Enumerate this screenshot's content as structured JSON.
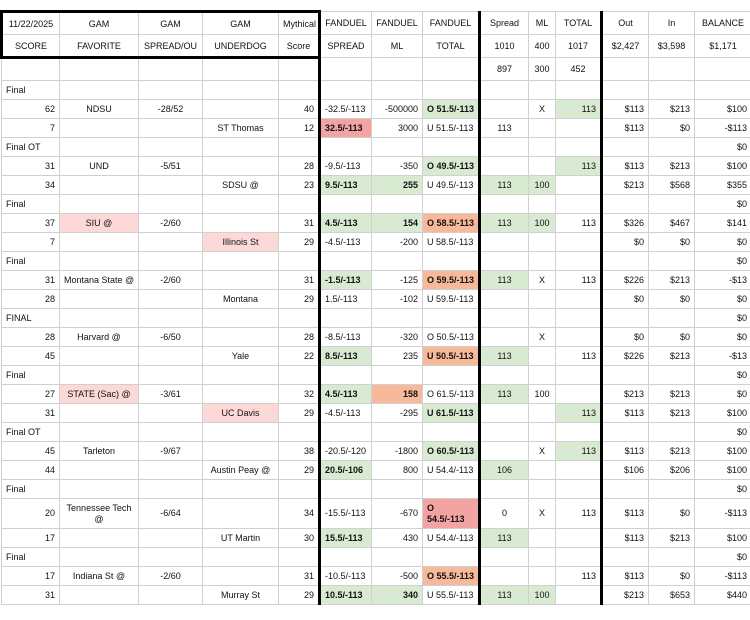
{
  "header_rows": [
    [
      "11/22/2025",
      "GAM",
      "GAM",
      "GAM",
      "Mythical",
      "FANDUEL",
      "FANDUEL",
      "FANDUEL",
      "Spread",
      "ML",
      "TOTAL",
      "Out",
      "In",
      "BALANCE"
    ],
    [
      "SCORE",
      "FAVORITE",
      "SPREAD/OU",
      "UNDERDOG",
      "Score",
      "SPREAD",
      "ML",
      "TOTAL",
      "1010",
      "400",
      "1017",
      "$2,427",
      "$3,598",
      "$1,171"
    ],
    [
      null,
      null,
      null,
      null,
      null,
      null,
      null,
      null,
      "897",
      "300",
      "452",
      null,
      null,
      null
    ]
  ],
  "rows": [
    [
      "Final",
      null,
      null,
      null,
      null,
      null,
      null,
      null,
      null,
      null,
      null,
      null,
      null,
      null
    ],
    [
      "62",
      "NDSU",
      "-28/52",
      null,
      "40",
      "-32.5/-113",
      "-500000",
      "O 51.5/-113",
      null,
      "X",
      "113",
      "$113",
      "$213",
      "$100"
    ],
    [
      "7",
      null,
      null,
      "ST Thomas",
      "12",
      "32.5/-113",
      "3000",
      "U 51.5/-113",
      "113",
      null,
      null,
      "$113",
      "$0",
      "-$113"
    ],
    [
      "Final OT",
      null,
      null,
      null,
      null,
      null,
      null,
      null,
      null,
      null,
      null,
      null,
      null,
      "$0"
    ],
    [
      "31",
      "UND",
      "-5/51",
      null,
      "28",
      "-9.5/-113",
      "-350",
      "O 49.5/-113",
      null,
      null,
      "113",
      "$113",
      "$213",
      "$100"
    ],
    [
      "34",
      null,
      null,
      "SDSU @",
      "23",
      "9.5/-113",
      "255",
      "U 49.5/-113",
      "113",
      "100",
      null,
      "$213",
      "$568",
      "$355"
    ],
    [
      "Final",
      null,
      null,
      null,
      null,
      null,
      null,
      null,
      null,
      null,
      null,
      null,
      null,
      "$0"
    ],
    [
      "37",
      "SIU @",
      "-2/60",
      null,
      "31",
      "4.5/-113",
      "154",
      "O 58.5/-113",
      "113",
      "100",
      "113",
      "$326",
      "$467",
      "$141"
    ],
    [
      "7",
      null,
      null,
      "Illinois St",
      "29",
      "-4.5/-113",
      "-200",
      "U 58.5/-113",
      null,
      null,
      null,
      "$0",
      "$0",
      "$0"
    ],
    [
      "Final",
      null,
      null,
      null,
      null,
      null,
      null,
      null,
      null,
      null,
      null,
      null,
      null,
      "$0"
    ],
    [
      "31",
      "Montana State @",
      "-2/60",
      null,
      "31",
      "-1.5/-113",
      "-125",
      "O 59.5/-113",
      "113",
      "X",
      "113",
      "$226",
      "$213",
      "-$13"
    ],
    [
      "28",
      null,
      null,
      "Montana",
      "29",
      "1.5/-113",
      "-102",
      "U 59.5/-113",
      null,
      null,
      null,
      "$0",
      "$0",
      "$0"
    ],
    [
      "FINAL",
      null,
      null,
      null,
      null,
      null,
      null,
      null,
      null,
      null,
      null,
      null,
      null,
      "$0"
    ],
    [
      "28",
      "Harvard @",
      "-6/50",
      null,
      "28",
      "-8.5/-113",
      "-320",
      "O 50.5/-113",
      null,
      "X",
      null,
      "$0",
      "$0",
      "$0"
    ],
    [
      "45",
      null,
      null,
      "Yale",
      "22",
      "8.5/-113",
      "235",
      "U 50.5/-113",
      "113",
      null,
      "113",
      "$226",
      "$213",
      "-$13"
    ],
    [
      "Final",
      null,
      null,
      null,
      null,
      null,
      null,
      null,
      null,
      null,
      null,
      null,
      null,
      "$0"
    ],
    [
      "27",
      "STATE (Sac) @",
      "-3/61",
      null,
      "32",
      "4.5/-113",
      "158",
      "O 61.5/-113",
      "113",
      "100",
      null,
      "$213",
      "$213",
      "$0"
    ],
    [
      "31",
      null,
      null,
      "UC Davis",
      "29",
      "-4.5/-113",
      "-295",
      "U 61.5/-113",
      null,
      null,
      "113",
      "$113",
      "$213",
      "$100"
    ],
    [
      "Final OT",
      null,
      null,
      null,
      null,
      null,
      null,
      null,
      null,
      null,
      null,
      null,
      null,
      "$0"
    ],
    [
      "45",
      "Tarleton",
      "-9/67",
      null,
      "38",
      "-20.5/-120",
      "-1800",
      "O 60.5/-113",
      null,
      "X",
      "113",
      "$113",
      "$213",
      "$100"
    ],
    [
      "44",
      null,
      null,
      "Austin Peay @",
      "29",
      "20.5/-106",
      "800",
      "U 54.4/-113",
      "106",
      null,
      null,
      "$106",
      "$206",
      "$100"
    ],
    [
      "Final",
      null,
      null,
      null,
      null,
      null,
      null,
      null,
      null,
      null,
      null,
      null,
      null,
      "$0"
    ],
    [
      "20",
      "Tennessee Tech @",
      "-6/64",
      null,
      "34",
      "-15.5/-113",
      "-670",
      "O 54.5/-113",
      "0",
      "X",
      "113",
      "$113",
      "$0",
      "-$113"
    ],
    [
      "17",
      null,
      null,
      "UT Martin",
      "30",
      "15.5/-113",
      "430",
      "U 54.4/-113",
      "113",
      null,
      null,
      "$113",
      "$213",
      "$100"
    ],
    [
      "Final",
      null,
      null,
      null,
      null,
      null,
      null,
      null,
      null,
      null,
      null,
      null,
      null,
      "$0"
    ],
    [
      "17",
      "Indiana St @",
      "-2/60",
      null,
      "31",
      "-10.5/-113",
      "-500",
      "O 55.5/-113",
      null,
      null,
      "113",
      "$113",
      "$0",
      "-$113"
    ],
    [
      "31",
      null,
      null,
      "Murray St",
      "29",
      "10.5/-113",
      "340",
      "U 55.5/-113",
      "113",
      "100",
      null,
      "$213",
      "$653",
      "$440"
    ]
  ]
}
